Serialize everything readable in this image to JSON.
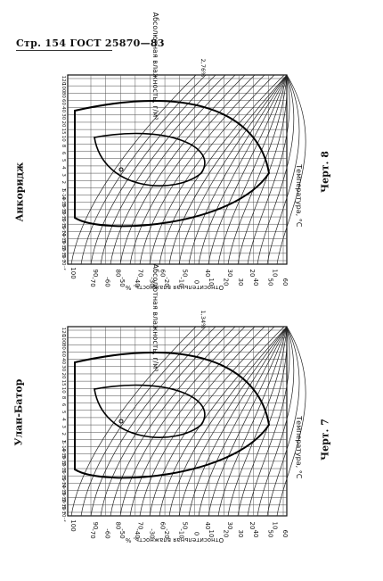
{
  "header": {
    "text": "Стр. 154 ГОСТ 25870—83"
  },
  "charts": [
    {
      "id": "top",
      "station": "Анкоридж",
      "caption": "Черт. 8",
      "corner_label": "2,76%",
      "abs_axis_label": "Абсолютная влажность, г/м³",
      "abs_ticks": [
        "120",
        "100",
        "80",
        "60",
        "40",
        "30",
        "20",
        "15",
        "10",
        "8",
        "6",
        "5",
        "4",
        "3",
        "2",
        "1",
        "5·10⁻¹",
        "4·10⁻¹",
        "3·10⁻¹",
        "2·10⁻¹",
        "1·10⁻¹",
        "5·10⁻²",
        "4·10⁻²",
        "3·10⁻²",
        "2·10⁻²",
        "1·10⁻²"
      ],
      "rh_axis_label": "Относительная влажность, %",
      "rh_ticks": [
        "100",
        "90",
        "80",
        "70",
        "60",
        "50",
        "40",
        "30",
        "20",
        "10"
      ],
      "temp_axis_label": "Температура, °С",
      "temp_ticks": [
        "-70",
        "-60",
        "-50",
        "-40",
        "-30",
        "-20",
        "-10",
        "0",
        "10",
        "20",
        "30",
        "40",
        "50",
        "60"
      ]
    },
    {
      "id": "bottom",
      "station": "Улан-Батор",
      "caption": "Черт. 7",
      "corner_label": "1,34%",
      "abs_axis_label": "Абсолютная влажность, г/м³",
      "abs_ticks": [
        "120",
        "100",
        "80",
        "60",
        "40",
        "30",
        "20",
        "15",
        "10",
        "8",
        "6",
        "5",
        "4",
        "3",
        "2",
        "1",
        "5·10⁻¹",
        "4·10⁻¹",
        "3·10⁻¹",
        "2·10⁻¹",
        "1·10⁻¹",
        "5·10⁻²",
        "4·10⁻²",
        "3·10⁻²",
        "2·10⁻²",
        "1·10⁻²"
      ],
      "rh_axis_label": "Относительная влажность, %",
      "rh_ticks": [
        "100",
        "90",
        "80",
        "70",
        "60",
        "50",
        "40",
        "30",
        "20",
        "10"
      ],
      "temp_axis_label": "Температура, °С",
      "temp_ticks": [
        "-70",
        "-60",
        "-50",
        "-40",
        "-30",
        "-20",
        "-10",
        "0",
        "10",
        "20",
        "30",
        "40",
        "50",
        "60"
      ]
    }
  ]
}
